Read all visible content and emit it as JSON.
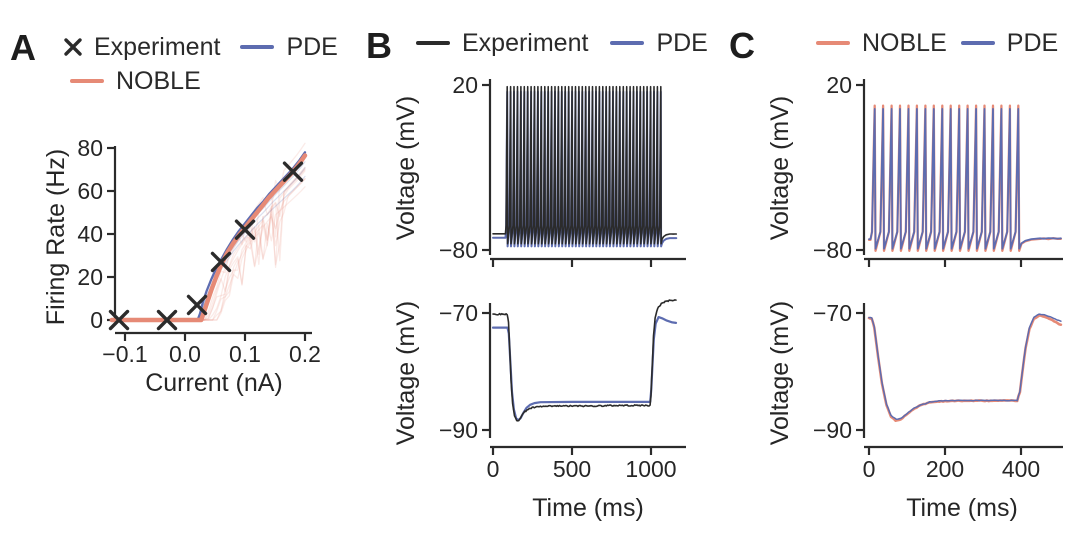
{
  "figure": {
    "colors": {
      "experiment": "#2b2b2b",
      "pde": "#5d6cb0",
      "noble": "#e68a76",
      "axis": "#2b2b2b",
      "text": "#262626"
    },
    "panels": [
      {
        "id": "A",
        "letter": "A",
        "legend_rows": [
          [
            {
              "swatch": "x",
              "color": "experiment",
              "label": "Experiment"
            },
            {
              "swatch": "line",
              "color": "pde",
              "label": "PDE"
            }
          ],
          [
            {
              "swatch": "line",
              "color": "noble",
              "label": "NOBLE"
            }
          ]
        ]
      },
      {
        "id": "B",
        "letter": "B",
        "legend_rows": [
          [
            {
              "swatch": "line",
              "color": "experiment",
              "label": "Experiment"
            },
            {
              "swatch": "line",
              "color": "pde",
              "label": "PDE"
            }
          ]
        ]
      },
      {
        "id": "C",
        "letter": "C",
        "legend_rows": [
          [
            {
              "swatch": "line",
              "color": "noble",
              "label": "NOBLE"
            },
            {
              "swatch": "line",
              "color": "pde",
              "label": "PDE"
            }
          ]
        ]
      }
    ]
  },
  "chart_data": [
    {
      "id": "fi-curve",
      "panel": "A",
      "type": "line",
      "xlabel": "Current (nA)",
      "ylabel": "Firing Rate (Hz)",
      "xlim": [
        -0.125,
        0.21
      ],
      "ylim": [
        0,
        80
      ],
      "xticks": [
        {
          "v": -0.1,
          "label": "−0.1"
        },
        {
          "v": 0.0,
          "label": "0.0"
        },
        {
          "v": 0.1,
          "label": "0.1"
        },
        {
          "v": 0.2,
          "label": "0.2"
        }
      ],
      "yticks": [
        {
          "v": 0,
          "label": "0"
        },
        {
          "v": 20,
          "label": "20"
        },
        {
          "v": 40,
          "label": "40"
        },
        {
          "v": 60,
          "label": "60"
        },
        {
          "v": 80,
          "label": "80"
        }
      ],
      "series": [
        {
          "name": "NOBLE ensemble",
          "role": "ensemble",
          "base": "NOBLE",
          "color": "noble",
          "count": 9,
          "opacity": 0.17,
          "width": 1.3,
          "dip": 0.55,
          "shift_max": 0.034
        },
        {
          "name": "PDE ensemble",
          "role": "ensemble",
          "base": "PDE",
          "color": "pde",
          "count": 3,
          "opacity": 0.22,
          "width": 1.2,
          "dip": 0,
          "shift_max": 0.006
        },
        {
          "name": "PDE",
          "color": "pde",
          "width": 2.3,
          "points": [
            [
              -0.122,
              0
            ],
            [
              -0.05,
              0
            ],
            [
              0.0,
              0
            ],
            [
              0.021,
              0
            ],
            [
              0.025,
              3
            ],
            [
              0.03,
              8.5
            ],
            [
              0.036,
              13.5
            ],
            [
              0.044,
              19
            ],
            [
              0.052,
              24
            ],
            [
              0.06,
              28
            ],
            [
              0.07,
              33
            ],
            [
              0.08,
              37.5
            ],
            [
              0.09,
              41.5
            ],
            [
              0.1,
              45
            ],
            [
              0.11,
              48.5
            ],
            [
              0.12,
              52
            ],
            [
              0.13,
              55
            ],
            [
              0.14,
              58.5
            ],
            [
              0.15,
              61.5
            ],
            [
              0.16,
              64.5
            ],
            [
              0.17,
              67.5
            ],
            [
              0.18,
              70.5
            ],
            [
              0.19,
              74
            ],
            [
              0.2,
              78
            ]
          ]
        },
        {
          "name": "NOBLE",
          "color": "noble",
          "width": 4.5,
          "points": [
            [
              -0.122,
              0
            ],
            [
              -0.05,
              0
            ],
            [
              0.0,
              0
            ],
            [
              0.027,
              0
            ],
            [
              0.032,
              4
            ],
            [
              0.038,
              9
            ],
            [
              0.044,
              14
            ],
            [
              0.052,
              20
            ],
            [
              0.06,
              25.5
            ],
            [
              0.07,
              31
            ],
            [
              0.08,
              35.5
            ],
            [
              0.09,
              39.5
            ],
            [
              0.1,
              43
            ],
            [
              0.11,
              46.5
            ],
            [
              0.12,
              50
            ],
            [
              0.13,
              53.5
            ],
            [
              0.14,
              57
            ],
            [
              0.15,
              60
            ],
            [
              0.16,
              63
            ],
            [
              0.17,
              66
            ],
            [
              0.18,
              69
            ],
            [
              0.19,
              72.5
            ],
            [
              0.2,
              76.5
            ]
          ]
        },
        {
          "name": "Experiment",
          "color": "experiment",
          "marker": "x",
          "size": 8.5,
          "width": 3.4,
          "points": [
            [
              -0.11,
              0
            ],
            [
              -0.03,
              0
            ],
            [
              0.02,
              7
            ],
            [
              0.06,
              27
            ],
            [
              0.1,
              42
            ],
            [
              0.18,
              69
            ]
          ]
        }
      ]
    },
    {
      "id": "spiking-b",
      "panel": "B",
      "type": "line",
      "xlabel": "",
      "ylabel": "Voltage (mV)",
      "xlim": [
        0,
        1185
      ],
      "ylim": [
        -80,
        20
      ],
      "xticks": [
        {
          "v": 0,
          "label": ""
        },
        {
          "v": 500,
          "label": ""
        },
        {
          "v": 1000,
          "label": ""
        }
      ],
      "yticks": [
        {
          "v": 20,
          "label": "20"
        },
        {
          "v": -80,
          "label": "−80"
        }
      ],
      "series": [
        {
          "name": "PDE",
          "color": "pde",
          "width": 2.0,
          "spike_train": {
            "baseline": -72.6,
            "t_start": 90,
            "t_end": 1062,
            "n_spikes": 46,
            "peak": 16,
            "trough": -77.8,
            "threshold": -66,
            "settle": -72.8,
            "t_max": 1160
          }
        },
        {
          "name": "Experiment",
          "color": "experiment",
          "width": 1.6,
          "spike_train": {
            "baseline": -70.2,
            "t_start": 90,
            "t_end": 1062,
            "n_spikes": 46,
            "peak": 19,
            "trough": -76.2,
            "threshold": -65,
            "settle": -70.3,
            "t_max": 1160,
            "wiggle": 0.3
          }
        }
      ]
    },
    {
      "id": "sag-b",
      "panel": "B",
      "type": "line",
      "xlabel": "Time (ms)",
      "ylabel": "Voltage (mV)",
      "xlim": [
        0,
        1185
      ],
      "ylim": [
        -93,
        -66
      ],
      "xticks": [
        {
          "v": 0,
          "label": "0"
        },
        {
          "v": 500,
          "label": "500"
        },
        {
          "v": 1000,
          "label": "1000"
        }
      ],
      "yticks": [
        {
          "v": -70,
          "label": "−70"
        },
        {
          "v": -90,
          "label": "−90"
        }
      ],
      "series": [
        {
          "name": "PDE",
          "color": "pde",
          "width": 2.2,
          "points": [
            [
              0,
              -72.5
            ],
            [
              92,
              -72.5
            ],
            [
              100,
              -73.5
            ],
            [
              110,
              -78.5
            ],
            [
              120,
              -83.5
            ],
            [
              132,
              -86.5
            ],
            [
              146,
              -88.0
            ],
            [
              160,
              -88.3
            ],
            [
              174,
              -88.0
            ],
            [
              192,
              -87.1
            ],
            [
              212,
              -86.2
            ],
            [
              235,
              -85.7
            ],
            [
              262,
              -85.4
            ],
            [
              300,
              -85.25
            ],
            [
              500,
              -85.2
            ],
            [
              800,
              -85.2
            ],
            [
              995,
              -85.2
            ],
            [
              1002,
              -83
            ],
            [
              1010,
              -78.5
            ],
            [
              1018,
              -74.5
            ],
            [
              1030,
              -71.8
            ],
            [
              1048,
              -70.7
            ],
            [
              1070,
              -70.9
            ],
            [
              1100,
              -71.3
            ],
            [
              1135,
              -71.6
            ],
            [
              1158,
              -71.7
            ]
          ]
        },
        {
          "name": "Experiment",
          "color": "experiment",
          "width": 1.6,
          "noise": 0.22,
          "step": 7,
          "points": [
            [
              0,
              -70.2
            ],
            [
              90,
              -70.2
            ],
            [
              98,
              -71.5
            ],
            [
              106,
              -76
            ],
            [
              114,
              -81.5
            ],
            [
              124,
              -85.5
            ],
            [
              136,
              -87.6
            ],
            [
              150,
              -88.4
            ],
            [
              163,
              -88.3
            ],
            [
              178,
              -87.7
            ],
            [
              196,
              -87.0
            ],
            [
              218,
              -86.5
            ],
            [
              248,
              -86.2
            ],
            [
              300,
              -86.0
            ],
            [
              420,
              -85.9
            ],
            [
              600,
              -85.9
            ],
            [
              800,
              -85.8
            ],
            [
              994,
              -85.8
            ],
            [
              1000,
              -84
            ],
            [
              1008,
              -79
            ],
            [
              1016,
              -74
            ],
            [
              1026,
              -70.8
            ],
            [
              1042,
              -69.2
            ],
            [
              1065,
              -68.4
            ],
            [
              1095,
              -68.0
            ],
            [
              1130,
              -67.8
            ],
            [
              1158,
              -67.8
            ]
          ]
        }
      ]
    },
    {
      "id": "spiking-c",
      "panel": "C",
      "type": "line",
      "xlabel": "",
      "ylabel": "Voltage (mV)",
      "xlim": [
        0,
        510
      ],
      "ylim": [
        -80,
        20
      ],
      "xticks": [
        {
          "v": 0,
          "label": ""
        },
        {
          "v": 200,
          "label": ""
        },
        {
          "v": 400,
          "label": ""
        }
      ],
      "yticks": [
        {
          "v": 20,
          "label": "20"
        },
        {
          "v": -80,
          "label": "−80"
        }
      ],
      "series": [
        {
          "name": "NOBLE",
          "color": "noble",
          "width": 2.3,
          "spike_train": {
            "baseline": -73.8,
            "t_start": 15,
            "t_end": 393,
            "n_spikes": 18,
            "peak": 7.5,
            "trough": -80.5,
            "threshold": -69,
            "settle": -73.2,
            "t_max": 505,
            "wiggle": 0.9
          }
        },
        {
          "name": "PDE",
          "color": "pde",
          "width": 1.8,
          "spike_train": {
            "baseline": -73.4,
            "t_start": 15,
            "t_end": 393,
            "n_spikes": 18,
            "peak": 5.5,
            "trough": -79.2,
            "threshold": -69,
            "settle": -72.9,
            "t_max": 505,
            "wiggle": 0.7
          }
        }
      ]
    },
    {
      "id": "sag-c",
      "panel": "C",
      "type": "line",
      "xlabel": "Time (ms)",
      "ylabel": "Voltage (mV)",
      "xlim": [
        0,
        510
      ],
      "ylim": [
        -93,
        -66
      ],
      "xticks": [
        {
          "v": 0,
          "label": "0"
        },
        {
          "v": 200,
          "label": "200"
        },
        {
          "v": 400,
          "label": "400"
        }
      ],
      "yticks": [
        {
          "v": -70,
          "label": "−70"
        },
        {
          "v": -90,
          "label": "−90"
        }
      ],
      "series": [
        {
          "name": "NOBLE",
          "color": "noble",
          "width": 2.6,
          "noise": 0.12,
          "step": 5,
          "points": [
            [
              0,
              -70.9
            ],
            [
              7,
              -70.9
            ],
            [
              14,
              -72.5
            ],
            [
              24,
              -77.5
            ],
            [
              34,
              -82
            ],
            [
              46,
              -85.8
            ],
            [
              58,
              -87.7
            ],
            [
              70,
              -88.4
            ],
            [
              83,
              -88.2
            ],
            [
              98,
              -87.4
            ],
            [
              115,
              -86.5
            ],
            [
              135,
              -85.8
            ],
            [
              158,
              -85.3
            ],
            [
              185,
              -85.1
            ],
            [
              240,
              -85.0
            ],
            [
              320,
              -85.0
            ],
            [
              390,
              -85.0
            ],
            [
              397,
              -83.5
            ],
            [
              404,
              -80
            ],
            [
              412,
              -76
            ],
            [
              422,
              -72.8
            ],
            [
              434,
              -71.0
            ],
            [
              448,
              -70.4
            ],
            [
              462,
              -70.6
            ],
            [
              478,
              -71.1
            ],
            [
              495,
              -71.7
            ],
            [
              505,
              -72.0
            ]
          ]
        },
        {
          "name": "PDE",
          "color": "pde",
          "width": 1.5,
          "noise": 0.1,
          "step": 5,
          "points": [
            [
              0,
              -70.8
            ],
            [
              7,
              -70.8
            ],
            [
              14,
              -72.4
            ],
            [
              24,
              -77.3
            ],
            [
              34,
              -81.8
            ],
            [
              46,
              -85.6
            ],
            [
              58,
              -87.5
            ],
            [
              72,
              -88.2
            ],
            [
              85,
              -88.0
            ],
            [
              100,
              -87.2
            ],
            [
              118,
              -86.3
            ],
            [
              138,
              -85.7
            ],
            [
              160,
              -85.2
            ],
            [
              188,
              -85.0
            ],
            [
              240,
              -84.95
            ],
            [
              320,
              -84.95
            ],
            [
              390,
              -84.95
            ],
            [
              397,
              -83.4
            ],
            [
              404,
              -79.8
            ],
            [
              412,
              -75.8
            ],
            [
              422,
              -72.5
            ],
            [
              434,
              -70.7
            ],
            [
              448,
              -70.2
            ],
            [
              462,
              -70.3
            ],
            [
              478,
              -70.7
            ],
            [
              495,
              -71.2
            ],
            [
              505,
              -71.4
            ]
          ]
        }
      ]
    }
  ]
}
